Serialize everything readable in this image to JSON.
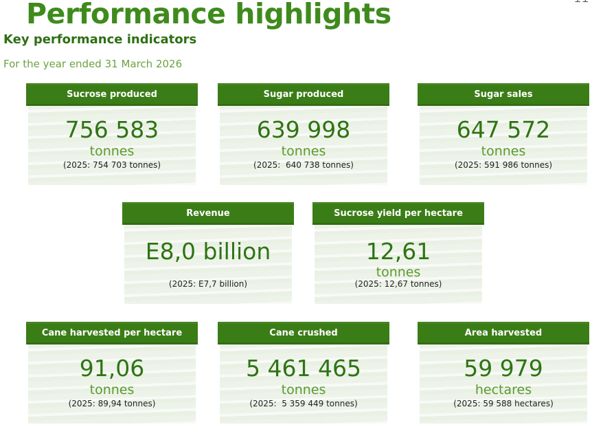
{
  "page": {
    "title": "Performance highlights",
    "subtitle": "Key performance indicators",
    "period": "For the year ended 31 March 2026",
    "corner_mark": "ꓕ ꓕ"
  },
  "cards": [
    {
      "label": "Sucrose produced",
      "value": "756 583",
      "unit": "tonnes",
      "prior": "(2025: 754 703 tonnes)"
    },
    {
      "label": "Sugar produced",
      "value": "639 998",
      "unit": "tonnes",
      "prior": "(2025:  640 738 tonnes)"
    },
    {
      "label": "Sugar sales",
      "value": "647 572",
      "unit": "tonnes",
      "prior": "(2025: 591 986 tonnes)"
    },
    {
      "label": "Revenue",
      "value": "E8,0 billion",
      "unit": "",
      "prior": "(2025: E7,7 billion)"
    },
    {
      "label": "Sucrose yield per hectare",
      "value": "12,61",
      "unit": "tonnes",
      "prior": "(2025: 12,67 tonnes)"
    },
    {
      "label": "Cane harvested per hectare",
      "value": "91,06",
      "unit": "tonnes",
      "prior": "(2025: 89,94 tonnes)"
    },
    {
      "label": "Cane crushed",
      "value": "5 461 465",
      "unit": "tonnes",
      "prior": "(2025:  5 359 449 tonnes)"
    },
    {
      "label": "Area harvested",
      "value": "59 979",
      "unit": "hectares",
      "prior": "(2025: 59 588 hectares)"
    }
  ]
}
